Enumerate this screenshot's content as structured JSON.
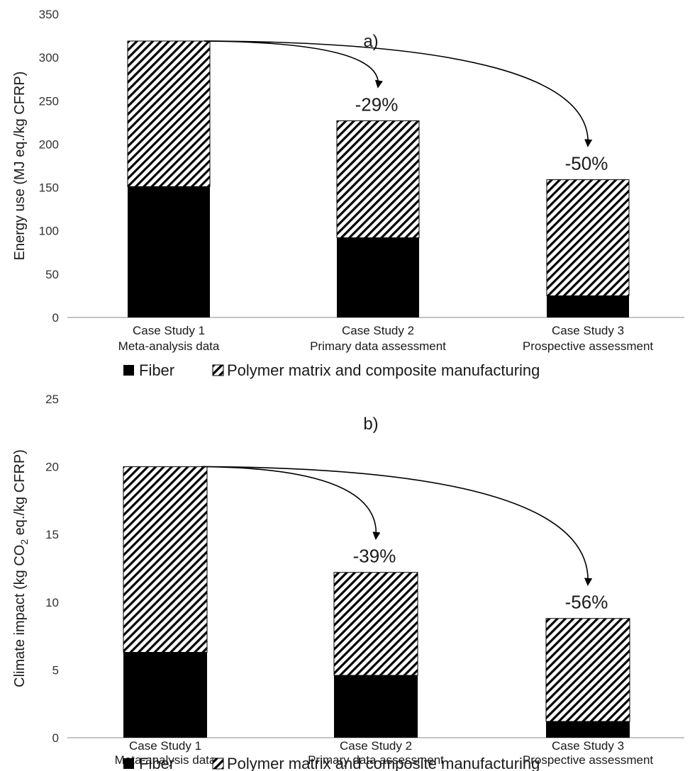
{
  "chart_data": [
    {
      "type": "bar",
      "stacked": true,
      "title": "a)",
      "ylabel": "Energy use (MJ eq./kg CFRP)",
      "ylim": [
        0,
        350
      ],
      "yticks": [
        0,
        50,
        100,
        150,
        200,
        250,
        300,
        350
      ],
      "categories": [
        [
          "Case Study 1",
          "Meta-analysis data"
        ],
        [
          "Case Study 2",
          "Primary data assessment"
        ],
        [
          "Case Study 3",
          "Prospective assessment"
        ]
      ],
      "series": [
        {
          "name": "Fiber",
          "values": [
            151,
            92,
            25
          ],
          "color": "#000000",
          "pattern": "solid"
        },
        {
          "name": "Polymer matrix and composite manufacturing",
          "values": [
            168,
            135,
            134
          ],
          "color": "#000000",
          "pattern": "diagonal-hatch"
        }
      ],
      "annotations": [
        {
          "from": 0,
          "to": 1,
          "label": "-29%"
        },
        {
          "from": 0,
          "to": 2,
          "label": "-50%"
        }
      ],
      "legend": {
        "placement": "bottom",
        "items": [
          "Fiber",
          "Polymer matrix and composite manufacturing"
        ]
      },
      "grid": false
    },
    {
      "type": "bar",
      "stacked": true,
      "title": "b)",
      "ylabel_parts": {
        "before": "Climate impact (kg CO",
        "sub": "2",
        "after": " eq./kg CFRP)"
      },
      "ylim": [
        0,
        25
      ],
      "yticks": [
        0,
        5,
        10,
        15,
        20,
        25
      ],
      "categories": [
        [
          "Case Study 1",
          "Meta-analysis data"
        ],
        [
          "Case Study 2",
          "Primary data assessment"
        ],
        [
          "Case Study 3",
          "Prospective assessment"
        ]
      ],
      "series": [
        {
          "name": "Fiber",
          "values": [
            6.3,
            4.6,
            1.2
          ],
          "color": "#000000",
          "pattern": "solid"
        },
        {
          "name": "Polymer matrix and composite manufacturing",
          "values": [
            13.7,
            7.6,
            7.6
          ],
          "color": "#000000",
          "pattern": "diagonal-hatch"
        }
      ],
      "annotations": [
        {
          "from": 0,
          "to": 1,
          "label": "-39%"
        },
        {
          "from": 0,
          "to": 2,
          "label": "-56%"
        }
      ],
      "legend": {
        "placement": "bottom",
        "items": [
          "Fiber",
          "Polymer matrix and composite manufacturing"
        ]
      },
      "grid": false
    }
  ]
}
